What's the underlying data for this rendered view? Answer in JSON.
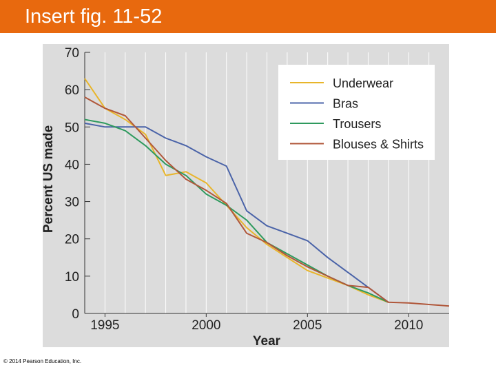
{
  "slide": {
    "title": "Insert fig. 11-52",
    "copyright": "© 2014 Pearson Education, Inc."
  },
  "colors": {
    "title_bar": "#E8690E",
    "plot_background": "#DCDCDC",
    "legend_background": "#FFFFFF"
  },
  "chart_data": {
    "type": "line",
    "title": "",
    "xlabel": "Year",
    "ylabel": "Percent US made",
    "xlim": [
      1994,
      2012
    ],
    "ylim": [
      0,
      70
    ],
    "xticks": [
      1995,
      2000,
      2005,
      2010
    ],
    "yticks": [
      0,
      10,
      20,
      30,
      40,
      50,
      60,
      70
    ],
    "grid": "vertical",
    "legend_position": "top-right",
    "series": [
      {
        "name": "Underwear",
        "color": "#E8B52A",
        "points": [
          [
            1994,
            63
          ],
          [
            1995,
            55
          ],
          [
            1996,
            52
          ],
          [
            1997,
            48
          ],
          [
            1998,
            37
          ],
          [
            1999,
            38
          ],
          [
            2000,
            35
          ],
          [
            2001,
            29
          ],
          [
            2002,
            23
          ],
          [
            2003,
            18.5
          ],
          [
            2004,
            15
          ],
          [
            2005,
            11.5
          ],
          [
            2006,
            9.5
          ],
          [
            2007,
            7.5
          ],
          [
            2008,
            5
          ],
          [
            2009,
            3
          ]
        ]
      },
      {
        "name": "Bras",
        "color": "#4A63A8",
        "points": [
          [
            1994,
            51
          ],
          [
            1995,
            50
          ],
          [
            1996,
            50
          ],
          [
            1997,
            50
          ],
          [
            1998,
            47
          ],
          [
            1999,
            45
          ],
          [
            2000,
            42
          ],
          [
            2001,
            39.5
          ],
          [
            2002,
            27.5
          ],
          [
            2003,
            23.5
          ],
          [
            2004,
            21.5
          ],
          [
            2005,
            19.5
          ],
          [
            2006,
            15
          ],
          [
            2007,
            11
          ],
          [
            2008,
            7
          ],
          [
            2009,
            3
          ]
        ]
      },
      {
        "name": "Trousers",
        "color": "#2E9A5E",
        "points": [
          [
            1994,
            52
          ],
          [
            1995,
            51
          ],
          [
            1996,
            49
          ],
          [
            1997,
            45
          ],
          [
            1998,
            40
          ],
          [
            1999,
            37
          ],
          [
            2000,
            32
          ],
          [
            2001,
            29
          ],
          [
            2002,
            25
          ],
          [
            2003,
            19
          ],
          [
            2004,
            16
          ],
          [
            2005,
            13
          ],
          [
            2006,
            10
          ],
          [
            2007,
            7.5
          ],
          [
            2008,
            5.5
          ],
          [
            2009,
            3
          ]
        ]
      },
      {
        "name": "Blouses & Shirts",
        "color": "#B0573A",
        "points": [
          [
            1994,
            58
          ],
          [
            1995,
            55
          ],
          [
            1996,
            53
          ],
          [
            1997,
            47
          ],
          [
            1998,
            41
          ],
          [
            1999,
            36
          ],
          [
            2000,
            33
          ],
          [
            2001,
            29.5
          ],
          [
            2002,
            21.5
          ],
          [
            2003,
            19
          ],
          [
            2004,
            15.5
          ],
          [
            2005,
            12.5
          ],
          [
            2006,
            10
          ],
          [
            2007,
            7.5
          ],
          [
            2008,
            7
          ],
          [
            2009,
            3
          ],
          [
            2010,
            2.8
          ],
          [
            2011,
            2.4
          ],
          [
            2012,
            2
          ]
        ]
      }
    ]
  }
}
